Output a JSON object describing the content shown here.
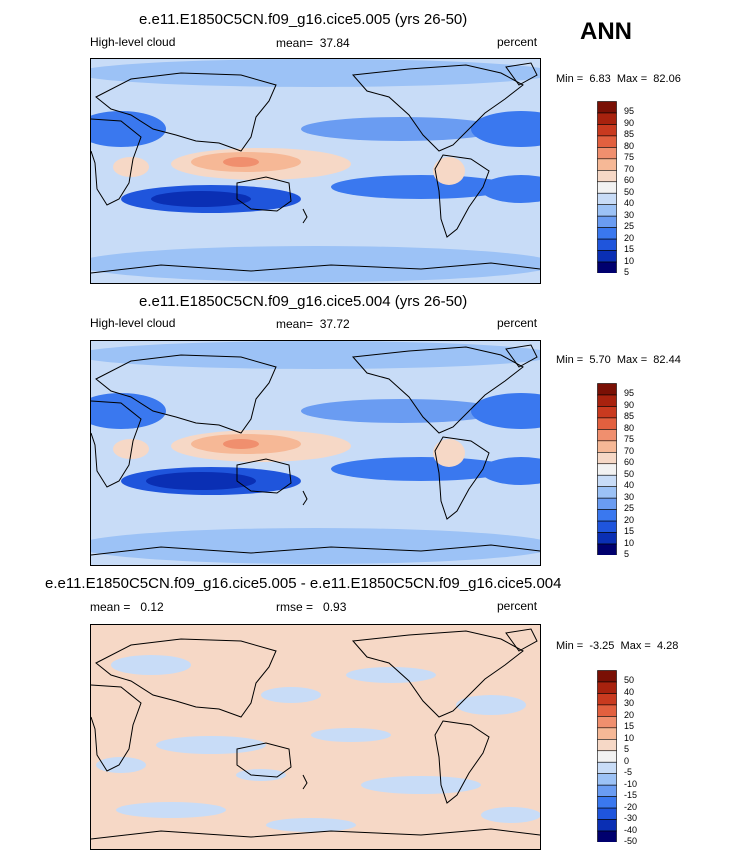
{
  "season": "ANN",
  "palettes": {
    "abs": [
      "#00006e",
      "#0a2fb4",
      "#1f55dc",
      "#3a78ef",
      "#6a9cf2",
      "#9cc2f6",
      "#c8dcf7",
      "#f2f2f2",
      "#f6d8c6",
      "#f6b896",
      "#f08f6e",
      "#e2603f",
      "#c93a1f",
      "#a8220e",
      "#7a1005"
    ],
    "diff": [
      "#00006e",
      "#0a2fb4",
      "#1f55dc",
      "#3a78ef",
      "#6a9cf2",
      "#9cc2f6",
      "#c8dcf7",
      "#f2f2f2",
      "#f6d8c6",
      "#f6b896",
      "#f08f6e",
      "#e2603f",
      "#c93a1f",
      "#a8220e",
      "#7a1005"
    ]
  },
  "panels": [
    {
      "title": "e.e11.E1850C5CN.f09_g16.cice5.005 (yrs 26-50)",
      "variable": "High-level cloud",
      "stat_label": "mean=",
      "stat_value": "37.84",
      "stat2_label": "",
      "stat2_value": "",
      "units": "percent",
      "min_label": "Min =",
      "min_value": "6.83",
      "max_label": "Max =",
      "max_value": "82.06",
      "colorbar_levels": [
        "95",
        "90",
        "85",
        "80",
        "75",
        "70",
        "60",
        "50",
        "40",
        "30",
        "25",
        "20",
        "15",
        "10",
        "5"
      ]
    },
    {
      "title": "e.e11.E1850C5CN.f09_g16.cice5.004 (yrs 26-50)",
      "variable": "High-level cloud",
      "stat_label": "mean=",
      "stat_value": "37.72",
      "stat2_label": "",
      "stat2_value": "",
      "units": "percent",
      "min_label": "Min =",
      "min_value": "5.70",
      "max_label": "Max =",
      "max_value": "82.44",
      "colorbar_levels": [
        "95",
        "90",
        "85",
        "80",
        "75",
        "70",
        "60",
        "50",
        "40",
        "30",
        "25",
        "20",
        "15",
        "10",
        "5"
      ]
    },
    {
      "title": "e.e11.E1850C5CN.f09_g16.cice5.005 - e.e11.E1850C5CN.f09_g16.cice5.004",
      "variable": "",
      "stat_label": "mean =",
      "stat_value": "0.12",
      "stat2_label": "rmse =",
      "stat2_value": "0.93",
      "units": "percent",
      "min_label": "Min =",
      "min_value": "-3.25",
      "max_label": "Max =",
      "max_value": "4.28",
      "colorbar_levels": [
        "50",
        "40",
        "30",
        "20",
        "15",
        "10",
        "5",
        "0",
        "-5",
        "-10",
        "-15",
        "-20",
        "-30",
        "-40",
        "-50"
      ]
    }
  ],
  "chart_data": [
    {
      "type": "heatmap",
      "title": "e.e11.E1850C5CN.f09_g16.cice5.005 (yrs 26-50)",
      "variable": "High-level cloud",
      "units": "percent",
      "mean": 37.84,
      "min": 6.83,
      "max": 82.06,
      "contour_levels": [
        5,
        10,
        15,
        20,
        25,
        30,
        40,
        50,
        60,
        70,
        75,
        80,
        85,
        90,
        95
      ],
      "projection": "global cylindrical equidistant, centered 180",
      "features": [
        {
          "region": "Western Pacific warm pool / Maritime Continent",
          "value_range": [
            60,
            82
          ]
        },
        {
          "region": "Southern Hemisphere subtropical oceans",
          "value_range": [
            5,
            25
          ]
        },
        {
          "region": "NH subtropical Atlantic / Pacific east",
          "value_range": [
            10,
            25
          ]
        },
        {
          "region": "Andes / tropical South America",
          "value_range": [
            60,
            75
          ]
        },
        {
          "region": "Southern Ocean",
          "value_range": [
            30,
            40
          ]
        }
      ]
    },
    {
      "type": "heatmap",
      "title": "e.e11.E1850C5CN.f09_g16.cice5.004 (yrs 26-50)",
      "variable": "High-level cloud",
      "units": "percent",
      "mean": 37.72,
      "min": 5.7,
      "max": 82.44,
      "contour_levels": [
        5,
        10,
        15,
        20,
        25,
        30,
        40,
        50,
        60,
        70,
        75,
        80,
        85,
        90,
        95
      ],
      "projection": "global cylindrical equidistant, centered 180",
      "features": [
        {
          "region": "Western Pacific warm pool / Maritime Continent",
          "value_range": [
            60,
            82
          ]
        },
        {
          "region": "Southern Hemisphere subtropical oceans",
          "value_range": [
            5,
            25
          ]
        },
        {
          "region": "NH subtropical Atlantic / Pacific east",
          "value_range": [
            10,
            25
          ]
        },
        {
          "region": "Andes / tropical South America",
          "value_range": [
            60,
            75
          ]
        },
        {
          "region": "Southern Ocean",
          "value_range": [
            30,
            40
          ]
        }
      ]
    },
    {
      "type": "heatmap",
      "title": "e.e11.E1850C5CN.f09_g16.cice5.005 - e.e11.E1850C5CN.f09_g16.cice5.004",
      "units": "percent",
      "mean": 0.12,
      "rmse": 0.93,
      "min": -3.25,
      "max": 4.28,
      "contour_levels": [
        -50,
        -40,
        -30,
        -20,
        -15,
        -10,
        -5,
        0,
        5,
        10,
        15,
        20,
        30,
        40,
        50
      ],
      "features": [
        {
          "region": "global",
          "value_range": [
            -5,
            5
          ]
        }
      ]
    }
  ]
}
